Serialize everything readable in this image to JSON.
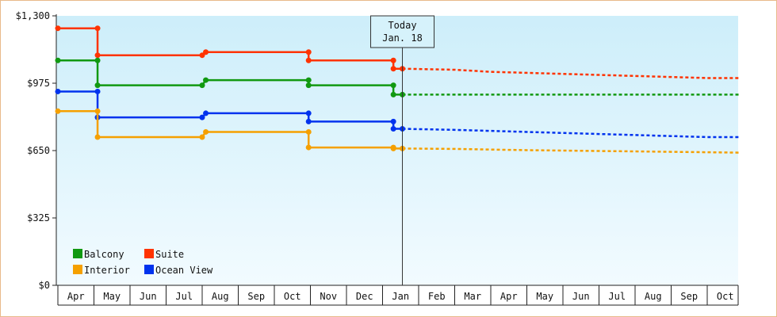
{
  "chart_data": {
    "type": "line",
    "title": "",
    "xlabel": "",
    "ylabel": "",
    "ylim": [
      0,
      1300
    ],
    "y_ticks": [
      {
        "value": 0,
        "label": "$0"
      },
      {
        "value": 325,
        "label": "$325"
      },
      {
        "value": 650,
        "label": "$650"
      },
      {
        "value": 975,
        "label": "$975"
      },
      {
        "value": 1300,
        "label": "$1,300"
      }
    ],
    "months": [
      "Apr",
      "May",
      "Jun",
      "Jul",
      "Aug",
      "Sep",
      "Oct",
      "Nov",
      "Dec",
      "Jan",
      "Feb",
      "Mar",
      "Apr",
      "May",
      "Jun",
      "Jul",
      "Aug",
      "Sep",
      "Oct"
    ],
    "today": {
      "label1": "Today",
      "label2": "Jan. 18",
      "x": 9.55
    },
    "legend": {
      "position": "bottom-left"
    },
    "colors": {
      "Balcony": "#119911",
      "Suite": "#ff3300",
      "Interior": "#f5a000",
      "Ocean View": "#0033ee",
      "plot_top": "#cdeefa",
      "plot_bottom": "#f2fbff",
      "frame": "#e8b98a"
    },
    "series": [
      {
        "name": "Suite",
        "history": [
          [
            0,
            1240
          ],
          [
            1.1,
            1240
          ],
          [
            1.1,
            1110
          ],
          [
            4.0,
            1110
          ],
          [
            4.1,
            1125
          ],
          [
            6.95,
            1125
          ],
          [
            6.95,
            1085
          ],
          [
            9.3,
            1085
          ],
          [
            9.3,
            1045
          ],
          [
            9.55,
            1045
          ]
        ],
        "forecast": [
          [
            9.55,
            1045
          ],
          [
            11,
            1040
          ],
          [
            12,
            1030
          ],
          [
            13,
            1025
          ],
          [
            14,
            1020
          ],
          [
            15,
            1015
          ],
          [
            16,
            1010
          ],
          [
            17,
            1005
          ],
          [
            18,
            1000
          ],
          [
            18.9,
            1000
          ]
        ]
      },
      {
        "name": "Balcony",
        "history": [
          [
            0,
            1085
          ],
          [
            1.1,
            1085
          ],
          [
            1.1,
            965
          ],
          [
            4.0,
            965
          ],
          [
            4.1,
            990
          ],
          [
            6.95,
            990
          ],
          [
            6.95,
            965
          ],
          [
            9.3,
            965
          ],
          [
            9.3,
            920
          ],
          [
            9.55,
            920
          ]
        ],
        "forecast": [
          [
            9.55,
            920
          ],
          [
            18.9,
            920
          ]
        ]
      },
      {
        "name": "Ocean View",
        "history": [
          [
            0,
            935
          ],
          [
            1.1,
            935
          ],
          [
            1.1,
            810
          ],
          [
            4.0,
            810
          ],
          [
            4.1,
            830
          ],
          [
            6.95,
            830
          ],
          [
            6.95,
            790
          ],
          [
            9.3,
            790
          ],
          [
            9.3,
            755
          ],
          [
            9.55,
            755
          ]
        ],
        "forecast": [
          [
            9.55,
            755
          ],
          [
            11,
            750
          ],
          [
            12,
            745
          ],
          [
            13,
            740
          ],
          [
            14,
            735
          ],
          [
            15,
            730
          ],
          [
            16,
            725
          ],
          [
            17,
            720
          ],
          [
            18,
            715
          ],
          [
            18.9,
            715
          ]
        ]
      },
      {
        "name": "Interior",
        "history": [
          [
            0,
            840
          ],
          [
            1.1,
            840
          ],
          [
            1.1,
            715
          ],
          [
            4.0,
            715
          ],
          [
            4.1,
            740
          ],
          [
            6.95,
            740
          ],
          [
            6.95,
            665
          ],
          [
            9.3,
            665
          ],
          [
            9.3,
            660
          ],
          [
            9.55,
            660
          ]
        ],
        "forecast": [
          [
            9.55,
            660
          ],
          [
            11,
            658
          ],
          [
            12,
            655
          ],
          [
            13,
            652
          ],
          [
            14,
            650
          ],
          [
            15,
            648
          ],
          [
            16,
            646
          ],
          [
            17,
            644
          ],
          [
            18,
            642
          ],
          [
            18.9,
            640
          ]
        ]
      }
    ]
  }
}
